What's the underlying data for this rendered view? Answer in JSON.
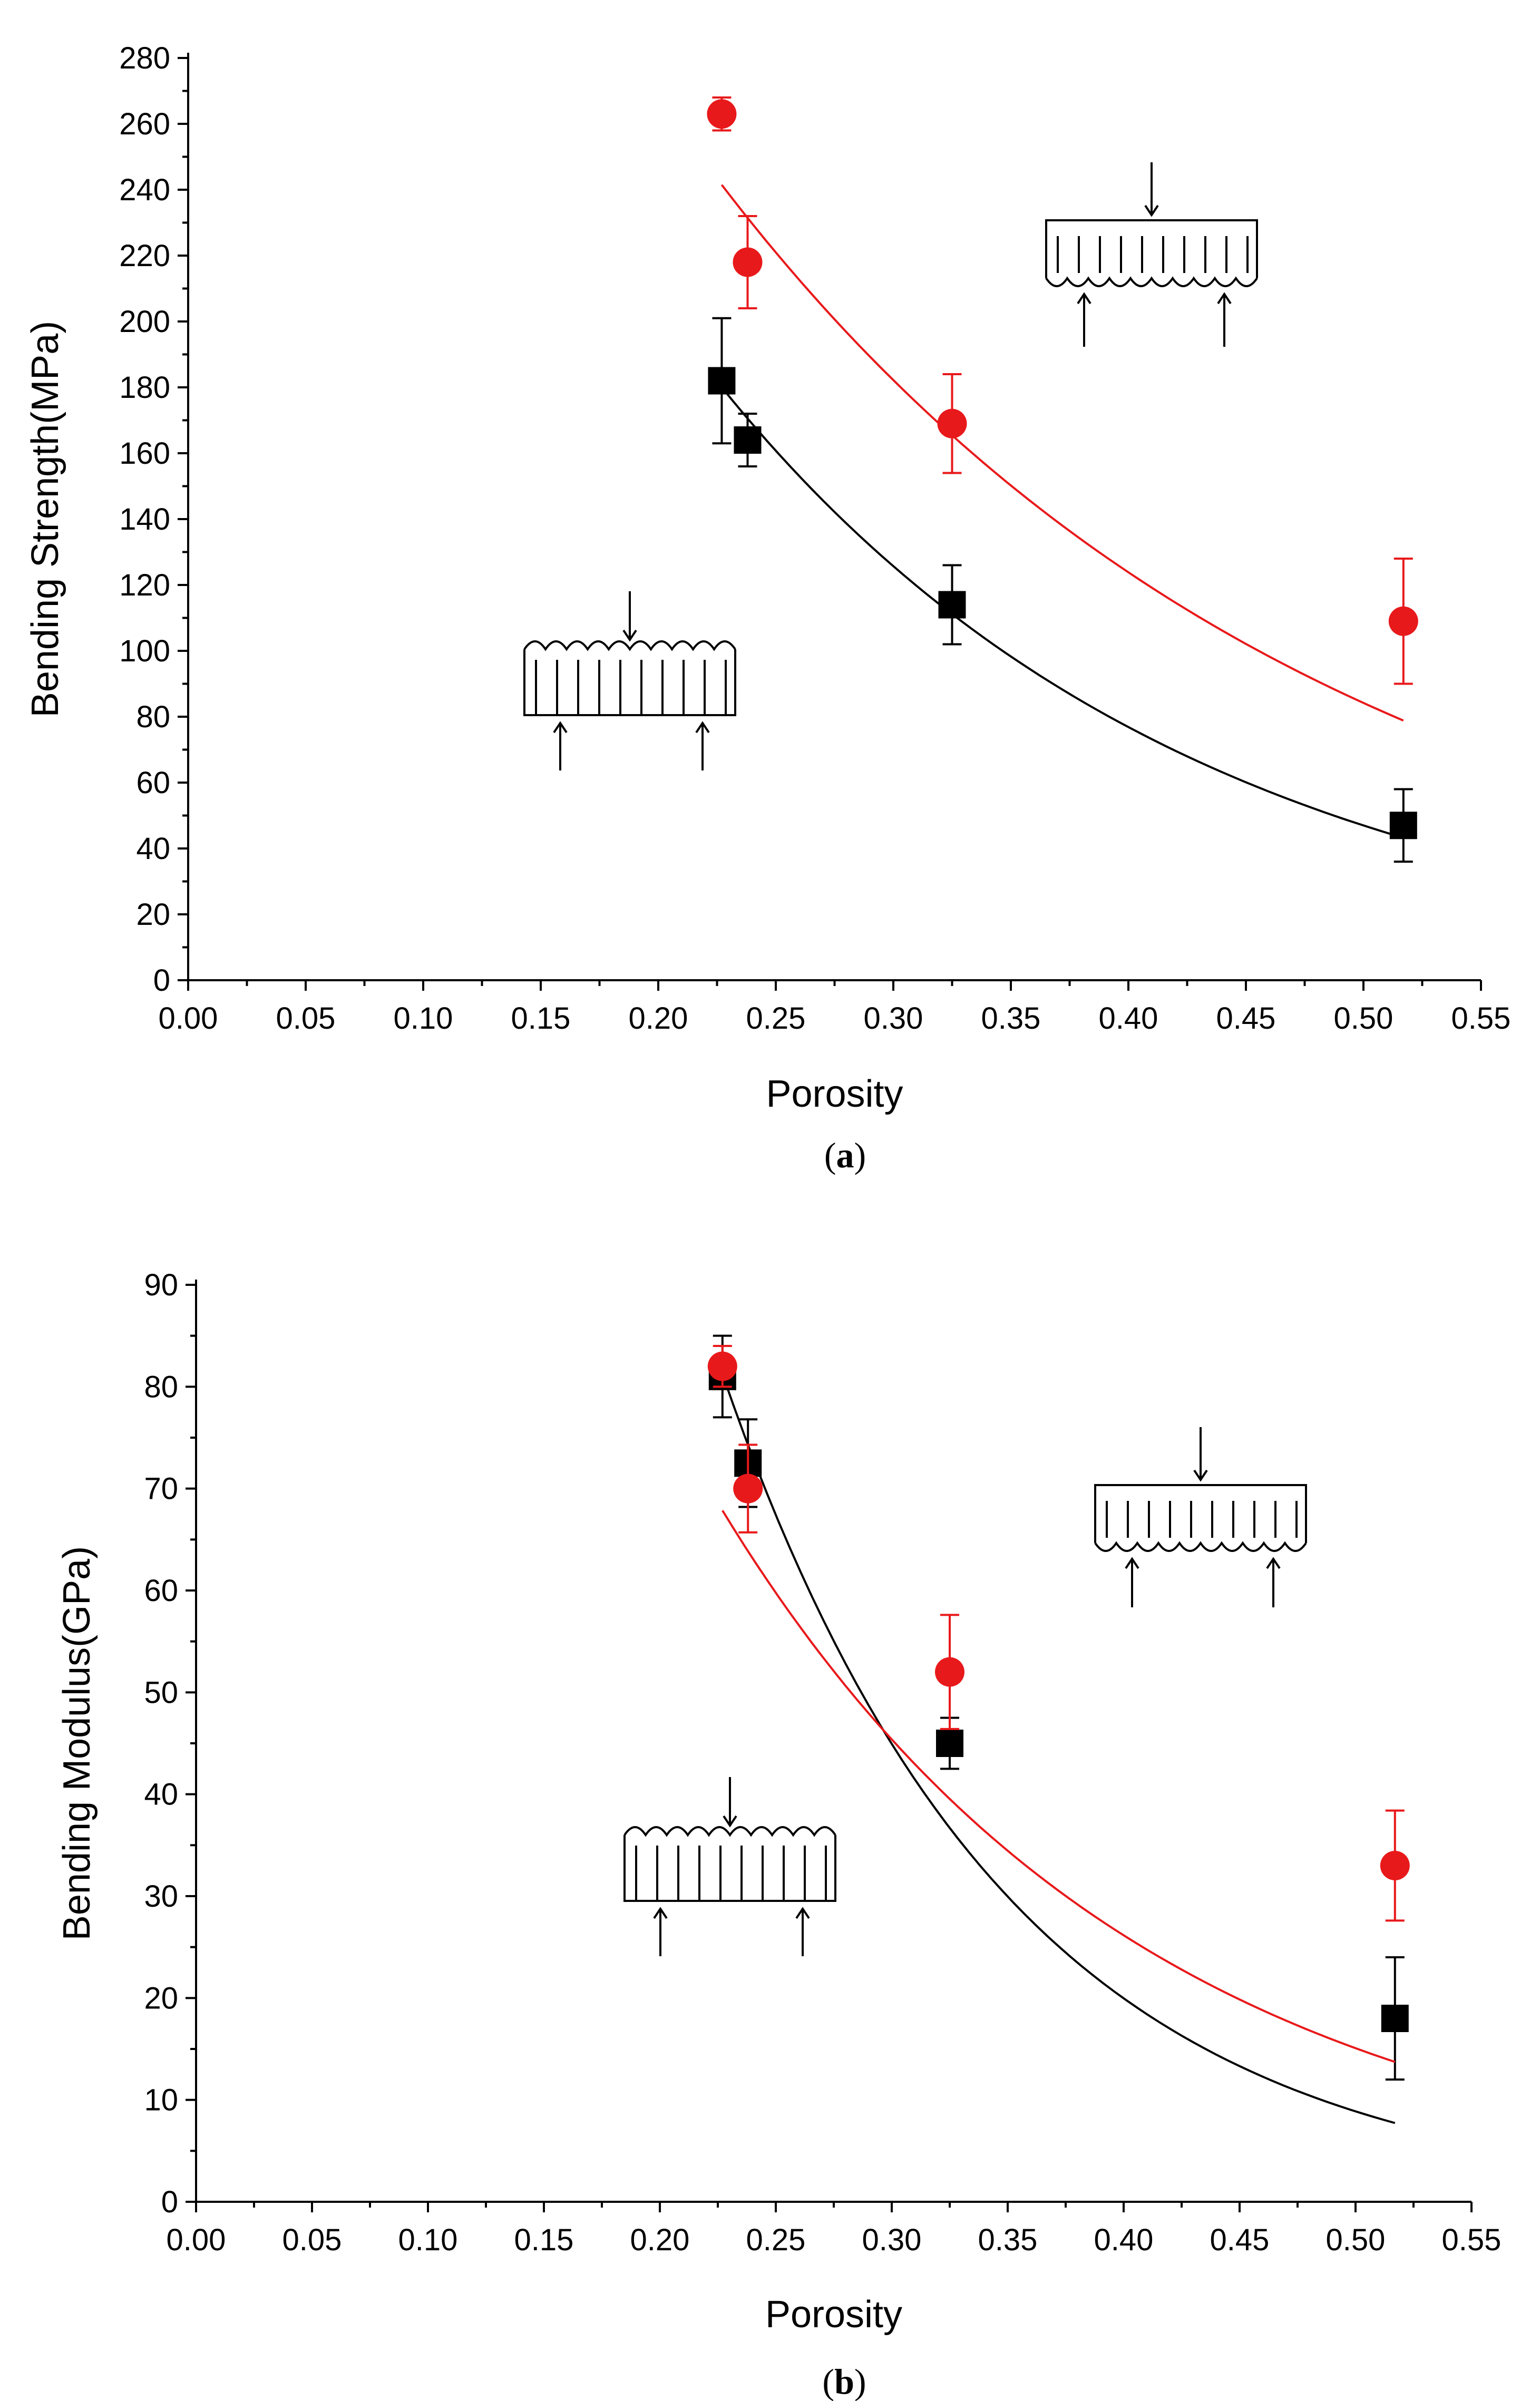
{
  "chart_data": [
    {
      "id": "a",
      "type": "scatter",
      "title": "",
      "caption": {
        "open": "(",
        "letter": "a",
        "close": ")"
      },
      "xlabel": "Porosity",
      "ylabel": "Bending Strength(MPa)",
      "xlim": [
        0.0,
        0.55
      ],
      "ylim": [
        0,
        280
      ],
      "xticks": [
        "0.00",
        "0.05",
        "0.10",
        "0.15",
        "0.20",
        "0.25",
        "0.30",
        "0.35",
        "0.40",
        "0.45",
        "0.50",
        "0.55"
      ],
      "yticks": [
        "0",
        "20",
        "40",
        "60",
        "80",
        "100",
        "120",
        "140",
        "160",
        "180",
        "200",
        "220",
        "240",
        "260",
        "280"
      ],
      "series": [
        {
          "name": "black-squares",
          "color": "#000000",
          "marker": "square",
          "x": [
            0.227,
            0.238,
            0.325,
            0.517
          ],
          "y": [
            182,
            164,
            114,
            47
          ],
          "err": [
            19,
            8,
            12,
            11
          ],
          "fit": {
            "x": [
              0.227,
              0.517
            ],
            "a": 550,
            "b": 4.92
          }
        },
        {
          "name": "red-circles",
          "color": "#e8191b",
          "marker": "circle",
          "x": [
            0.227,
            0.238,
            0.325,
            0.517
          ],
          "y": [
            263,
            218,
            169,
            109
          ],
          "err": [
            5,
            14,
            15,
            19
          ],
          "fit": {
            "x": [
              0.227,
              0.517
            ],
            "a": 580,
            "b": 3.86
          }
        }
      ]
    },
    {
      "id": "b",
      "type": "scatter",
      "title": "",
      "caption": {
        "open": "(",
        "letter": "b",
        "close": ")"
      },
      "xlabel": "Porosity",
      "ylabel": "Bending Modulus(GPa)",
      "xlim": [
        0.0,
        0.55
      ],
      "ylim": [
        0,
        90
      ],
      "xticks": [
        "0.00",
        "0.05",
        "0.10",
        "0.15",
        "0.20",
        "0.25",
        "0.30",
        "0.35",
        "0.40",
        "0.45",
        "0.50",
        "0.55"
      ],
      "yticks": [
        "0",
        "10",
        "20",
        "30",
        "40",
        "50",
        "60",
        "70",
        "80",
        "90"
      ],
      "series": [
        {
          "name": "black-squares",
          "color": "#000000",
          "marker": "square",
          "x": [
            0.227,
            0.238,
            0.325,
            0.517
          ],
          "y": [
            81,
            72.5,
            45,
            18
          ],
          "err": [
            4,
            4.3,
            2.5,
            6
          ],
          "fit": {
            "x": [
              0.227,
              0.517
            ],
            "a": 512,
            "b": 8.11
          }
        },
        {
          "name": "red-circles",
          "color": "#e8191b",
          "marker": "circle",
          "x": [
            0.227,
            0.238,
            0.325,
            0.517
          ],
          "y": [
            82,
            70,
            52,
            33
          ],
          "err": [
            2,
            4.3,
            5.6,
            5.4
          ],
          "fit": {
            "x": [
              0.227,
              0.517
            ],
            "a": 237,
            "b": 5.51
          }
        }
      ]
    }
  ]
}
